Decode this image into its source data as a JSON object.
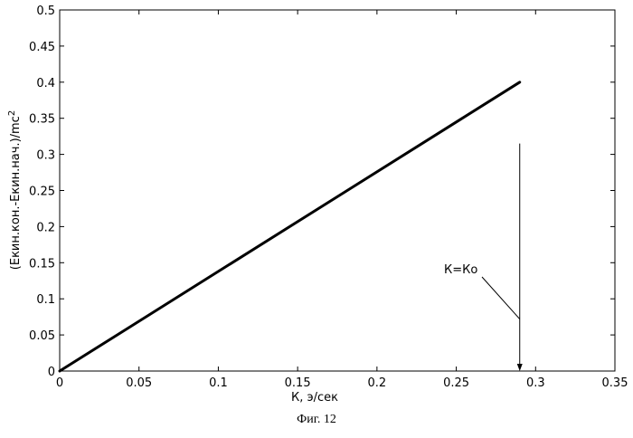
{
  "chart_data": {
    "type": "line",
    "title": "",
    "xlabel": "К, э/сек",
    "ylabel_main": "(Екин.кон.-Екин.нач.)/mc",
    "ylabel_sup": "2",
    "xlim": [
      0,
      0.35
    ],
    "ylim": [
      0,
      0.5
    ],
    "xticks": [
      0,
      0.05,
      0.1,
      0.15,
      0.2,
      0.25,
      0.3,
      0.35
    ],
    "xtick_labels": [
      "0",
      "0.05",
      "0.1",
      "0.15",
      "0.2",
      "0.25",
      "0.3",
      "0.35"
    ],
    "yticks": [
      0,
      0.05,
      0.1,
      0.15,
      0.2,
      0.25,
      0.3,
      0.35,
      0.4,
      0.45,
      0.5
    ],
    "ytick_labels": [
      "0",
      "0.05",
      "0.1",
      "0.15",
      "0.2",
      "0.25",
      "0.3",
      "0.35",
      "0.4",
      "0.45",
      "0.5"
    ],
    "grid": false,
    "series": [
      {
        "x": [
          0,
          0.29
        ],
        "y": [
          0,
          0.4
        ]
      }
    ],
    "marker_line": {
      "x": 0.29,
      "y_top": 0.315,
      "y_bottom": 0
    },
    "annotation": {
      "text": "К=Ко",
      "points_to": {
        "x": 0.29,
        "y": 0.072
      }
    }
  },
  "caption": "Фиг. 12",
  "colors": {
    "line": "#000000",
    "background": "#ffffff"
  }
}
